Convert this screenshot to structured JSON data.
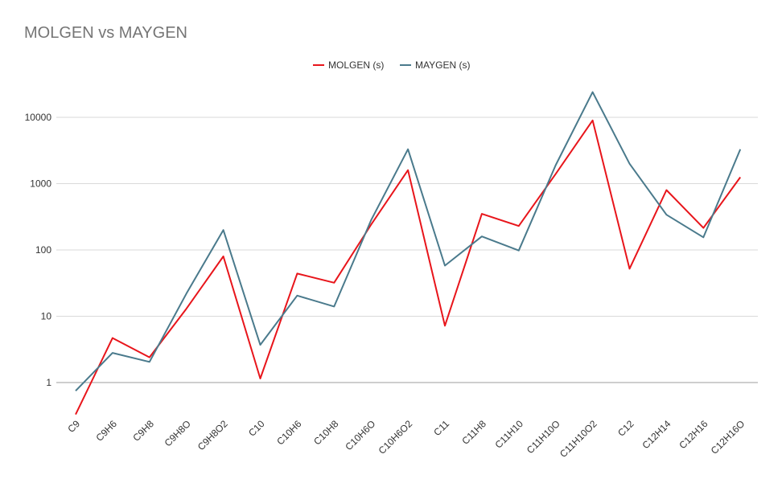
{
  "chart_data": {
    "type": "line",
    "title": "MOLGEN vs MAYGEN",
    "xlabel": "",
    "ylabel": "",
    "yscale": "log",
    "ylim": [
      0.5,
      30000
    ],
    "yticks": [
      1,
      10,
      100,
      1000,
      10000
    ],
    "ytick_labels": [
      "1",
      "10",
      "100",
      "1000",
      "10000"
    ],
    "grid": true,
    "legend_position": "top-center",
    "categories": [
      "C9",
      "C9H6",
      "C9H8",
      "C9H8O",
      "C9H8O2",
      "C10",
      "C10H6",
      "C10H8",
      "C10H6O",
      "C10H6O2",
      "C11",
      "C11H8",
      "C11H10",
      "C11H10O",
      "C11H10O2",
      "C12",
      "C12H14",
      "C12H16",
      "C12H16O"
    ],
    "series": [
      {
        "name": "MOLGEN (s)",
        "color": "#e8151b",
        "values": [
          0.33,
          4.7,
          2.4,
          13,
          80,
          1.15,
          44,
          32,
          240,
          1600,
          7.2,
          350,
          230,
          1400,
          9000,
          52,
          800,
          215,
          1250
        ]
      },
      {
        "name": "MAYGEN (s)",
        "color": "#4a7a8c",
        "values": [
          0.75,
          2.8,
          2.05,
          22,
          200,
          3.7,
          20.5,
          14,
          280,
          3300,
          58,
          160,
          98,
          1900,
          24000,
          2000,
          340,
          155,
          3300
        ]
      }
    ]
  }
}
